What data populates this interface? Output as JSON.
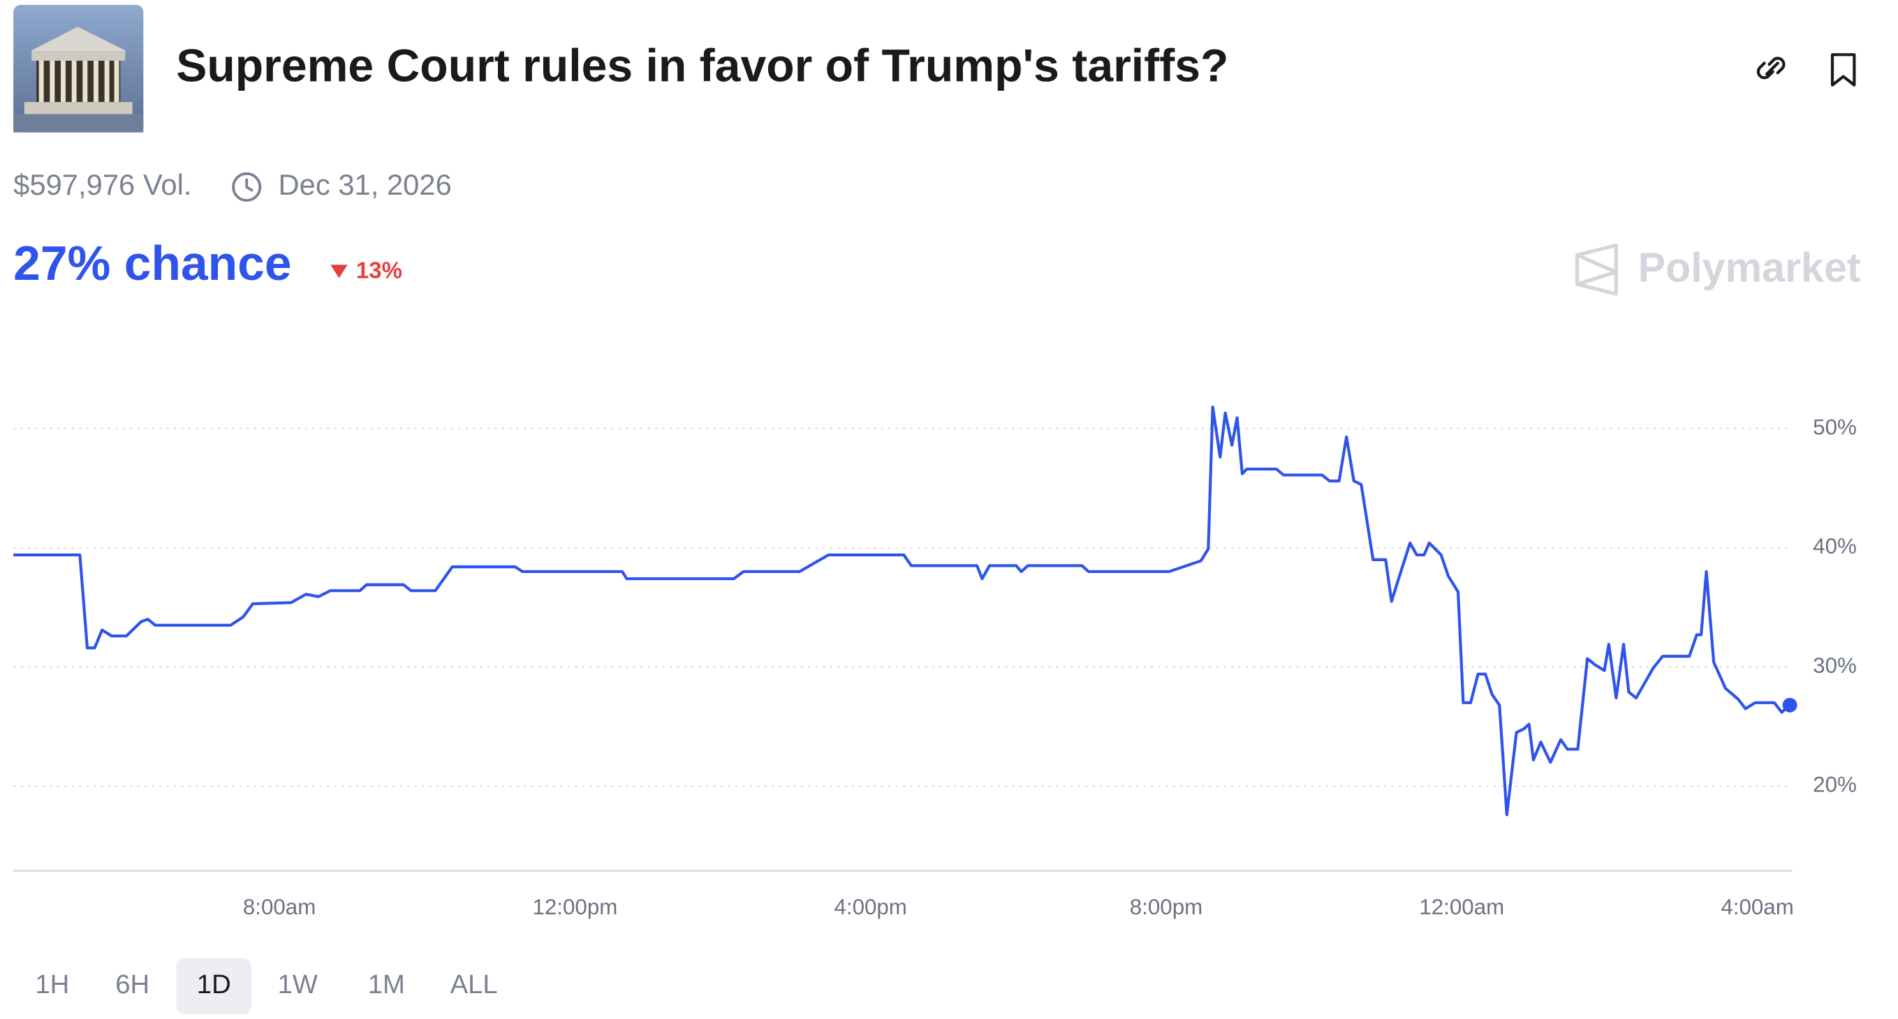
{
  "header": {
    "title": "Supreme Court rules in favor of Trump's tariffs?",
    "volume": "$597,976 Vol.",
    "end_date": "Dec 31, 2026"
  },
  "chance": {
    "label": "27% chance",
    "change": "13%"
  },
  "brand": "Polymarket",
  "range_buttons": [
    "1H",
    "6H",
    "1D",
    "1W",
    "1M",
    "ALL"
  ],
  "selected_range": "1D",
  "chart_data": {
    "type": "line",
    "color": "#2f54eb",
    "x": [
      4.4,
      5.3,
      5.4,
      5.5,
      5.6,
      5.73,
      5.93,
      6.13,
      6.22,
      6.32,
      7.34,
      7.51,
      7.64,
      8.16,
      8.36,
      8.53,
      8.69,
      9.09,
      9.18,
      9.68,
      9.78,
      10.11,
      10.34,
      11.19,
      11.29,
      12.64,
      12.7,
      14.15,
      14.28,
      15.04,
      15.43,
      16.45,
      16.55,
      17.44,
      17.51,
      17.61,
      17.97,
      18.04,
      18.13,
      18.86,
      18.95,
      20.04,
      20.47,
      20.57,
      20.63,
      20.73,
      20.8,
      20.89,
      20.96,
      21.03,
      21.09,
      21.49,
      21.59,
      22.11,
      22.21,
      22.34,
      22.44,
      22.54,
      22.64,
      22.8,
      22.97,
      23.05,
      23.13,
      23.3,
      23.39,
      23.49,
      23.56,
      23.72,
      23.82,
      23.95,
      24.02,
      24.12,
      24.22,
      24.32,
      24.41,
      24.51,
      24.61,
      24.74,
      24.84,
      24.91,
      24.97,
      25.07,
      25.2,
      25.34,
      25.43,
      25.57,
      25.7,
      25.8,
      25.93,
      25.99,
      26.09,
      26.19,
      26.26,
      26.36,
      26.59,
      26.72,
      27.08,
      27.18,
      27.24,
      27.31,
      27.41,
      27.57,
      27.74,
      27.84,
      27.97,
      28.23,
      28.33,
      28.44
    ],
    "values": [
      39.4,
      39.4,
      31.6,
      31.6,
      33.1,
      32.6,
      32.6,
      33.8,
      34.0,
      33.5,
      33.5,
      34.2,
      35.3,
      35.4,
      36.1,
      35.9,
      36.4,
      36.4,
      36.9,
      36.9,
      36.4,
      36.4,
      38.4,
      38.4,
      38.0,
      38.0,
      37.4,
      37.4,
      38.0,
      38.0,
      39.4,
      39.4,
      38.5,
      38.5,
      37.4,
      38.5,
      38.5,
      38.0,
      38.5,
      38.5,
      38.0,
      38.0,
      38.9,
      39.9,
      51.8,
      47.6,
      51.3,
      48.6,
      50.9,
      46.2,
      46.6,
      46.6,
      46.1,
      46.1,
      45.6,
      45.6,
      49.3,
      45.6,
      45.3,
      39.0,
      39.0,
      35.5,
      37.1,
      40.4,
      39.4,
      39.4,
      40.4,
      39.4,
      37.6,
      36.3,
      27.0,
      27.0,
      29.4,
      29.4,
      27.7,
      26.8,
      17.6,
      24.5,
      24.8,
      25.2,
      22.2,
      23.7,
      22.0,
      23.9,
      23.1,
      23.1,
      30.7,
      30.2,
      29.7,
      31.9,
      27.4,
      31.9,
      27.9,
      27.4,
      29.9,
      30.9,
      30.9,
      32.7,
      32.7,
      38.0,
      30.4,
      28.2,
      27.3,
      26.5,
      27.0,
      27.0,
      26.2,
      26.8
    ],
    "xlim": [
      4.4,
      28.44
    ],
    "xticks": [
      {
        "value": 8,
        "label": "8:00am"
      },
      {
        "value": 12,
        "label": "12:00pm"
      },
      {
        "value": 16,
        "label": "4:00pm"
      },
      {
        "value": 20,
        "label": "8:00pm"
      },
      {
        "value": 24,
        "label": "12:00am"
      },
      {
        "value": 28,
        "label": "4:00am"
      }
    ],
    "ylim": [
      12.9,
      56.4
    ],
    "yticks": [
      {
        "value": 20,
        "label": "20%"
      },
      {
        "value": 30,
        "label": "30%"
      },
      {
        "value": 40,
        "label": "40%"
      },
      {
        "value": 50,
        "label": "50%"
      }
    ],
    "grid": true
  }
}
